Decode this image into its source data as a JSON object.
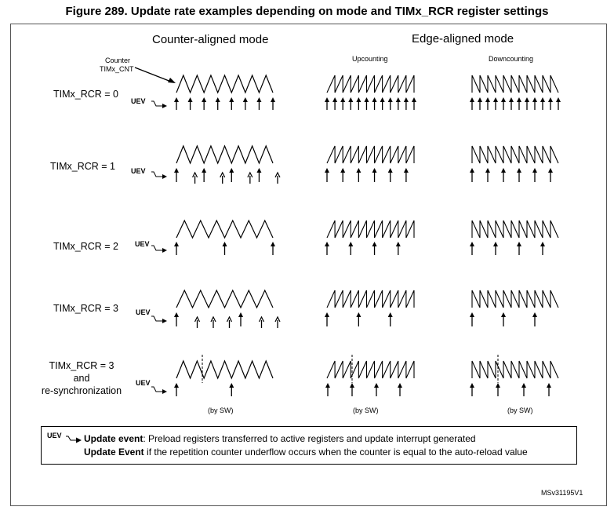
{
  "figure": {
    "title": "Figure 289. Update rate examples depending on mode and TIMx_RCR register settings",
    "reference": "MSv31195V1"
  },
  "headers": {
    "counter_aligned": "Counter-aligned mode",
    "edge_aligned": "Edge-aligned mode",
    "upcounting": "Upcounting",
    "downcounting": "Downcounting",
    "counter_label_1": "Counter",
    "counter_label_2": "TIMx_CNT"
  },
  "rows": [
    {
      "label": "TIMx_RCR = 0",
      "uev": "UEV",
      "sw": ""
    },
    {
      "label": "TIMx_RCR = 1",
      "uev": "UEV",
      "sw": ""
    },
    {
      "label": "TIMx_RCR = 2",
      "uev": "UEV",
      "sw": ""
    },
    {
      "label": "TIMx_RCR = 3",
      "uev": "UEV",
      "sw": ""
    },
    {
      "label": "TIMx_RCR = 3\nand\nre-synchronization",
      "label_lines": [
        "TIMx_RCR = 3",
        "and",
        "re-synchronization"
      ],
      "uev": "UEV",
      "sw": "(by SW)"
    }
  ],
  "legend": {
    "uev": "UEV",
    "line1_bold": "Update event",
    "line1_rest": ": Preload registers transferred to active registers and update interrupt generated",
    "line2_bold": "Update Event",
    "line2_rest": " if the repetition counter underflow occurs when the counter is equal to the auto-reload value"
  },
  "timing": {
    "counter_aligned": [
      {
        "rcr": 0,
        "peaks": 7,
        "uev_every": 1,
        "secondary": false
      },
      {
        "rcr": 1,
        "peaks": 7,
        "uev_every": 2,
        "secondary": true
      },
      {
        "rcr": 2,
        "peaks": 6,
        "uev_every": 3,
        "secondary": false
      },
      {
        "rcr": 3,
        "peaks": 6,
        "uev_every": 4,
        "secondary": true
      },
      {
        "rcr": 3,
        "peaks": 7,
        "uev_every": 4,
        "secondary": false,
        "resync": true
      }
    ],
    "upcounting": [
      {
        "rcr": 0,
        "teeth": 11,
        "uev_every": 1
      },
      {
        "rcr": 1,
        "teeth": 11,
        "uev_every": 2
      },
      {
        "rcr": 2,
        "teeth": 11,
        "uev_every": 3
      },
      {
        "rcr": 3,
        "teeth": 11,
        "uev_every": 4
      },
      {
        "rcr": 3,
        "teeth": 11,
        "uev_every": 4,
        "resync": true
      }
    ],
    "downcounting": [
      {
        "rcr": 0,
        "teeth": 11,
        "uev_every": 1
      },
      {
        "rcr": 1,
        "teeth": 11,
        "uev_every": 2
      },
      {
        "rcr": 2,
        "teeth": 11,
        "uev_every": 3
      },
      {
        "rcr": 3,
        "teeth": 11,
        "uev_every": 4
      },
      {
        "rcr": 3,
        "teeth": 11,
        "uev_every": 4,
        "resync": true
      }
    ]
  }
}
